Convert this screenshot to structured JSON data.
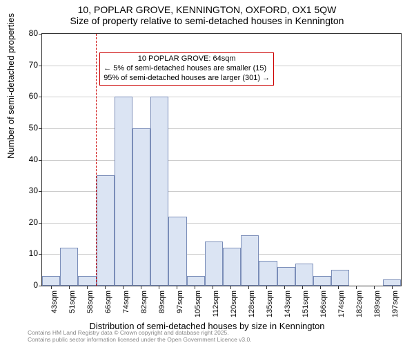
{
  "title_main": "10, POPLAR GROVE, KENNINGTON, OXFORD, OX1 5QW",
  "title_sub": "Size of property relative to semi-detached houses in Kennington",
  "chart": {
    "type": "histogram",
    "x_label": "Distribution of semi-detached houses by size in Kennington",
    "y_label": "Number of semi-detached properties",
    "ylim": [
      0,
      80
    ],
    "ytick_step": 10,
    "bar_fill": "#dbe4f3",
    "bar_border": "#7a8db8",
    "grid_color": "#cccccc",
    "background": "#ffffff",
    "categories": [
      "43sqm",
      "51sqm",
      "58sqm",
      "66sqm",
      "74sqm",
      "82sqm",
      "89sqm",
      "97sqm",
      "105sqm",
      "112sqm",
      "120sqm",
      "128sqm",
      "135sqm",
      "143sqm",
      "151sqm",
      "166sqm",
      "174sqm",
      "182sqm",
      "189sqm",
      "197sqm"
    ],
    "values": [
      3,
      12,
      3,
      35,
      60,
      50,
      60,
      22,
      3,
      14,
      12,
      16,
      8,
      6,
      7,
      3,
      5,
      0,
      0,
      2
    ],
    "reference_line": {
      "position_index": 3.0,
      "color": "#cc0000",
      "dash": true
    },
    "annotation": {
      "lines": [
        "10 POPLAR GROVE: 64sqm",
        "← 5% of semi-detached houses are smaller (15)",
        "95% of semi-detached houses are larger (301) →"
      ],
      "border_color": "#cc0000",
      "text_color": "#000000",
      "fontsize": 11,
      "position_index": 3.2,
      "position_y": 74
    }
  },
  "footer": {
    "line1": "Contains HM Land Registry data © Crown copyright and database right 2025.",
    "line2": "Contains public sector information licensed under the Open Government Licence v3.0.",
    "color": "#888888"
  }
}
